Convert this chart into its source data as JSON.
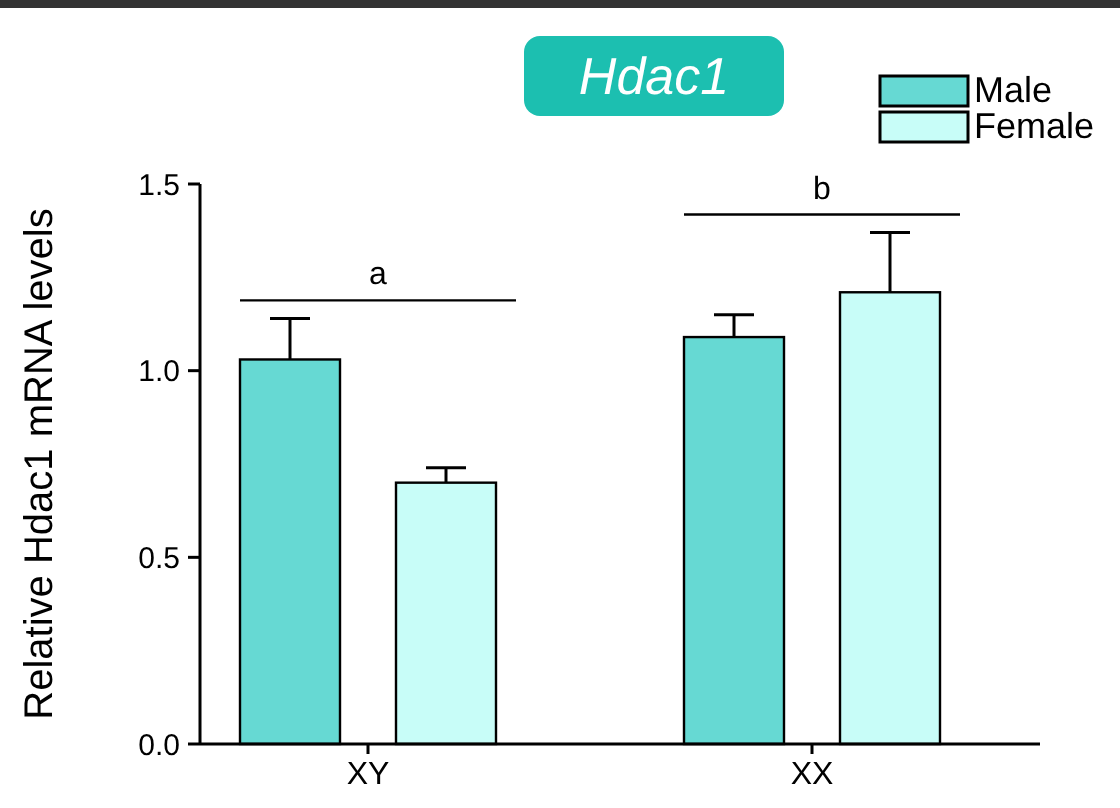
{
  "chart_data": {
    "type": "bar",
    "title": "Hdac1",
    "ylabel": "Relative Hdac1 mRNA levels",
    "categories": [
      "XY",
      "XX"
    ],
    "series": [
      {
        "name": "Male",
        "color": "#66d9d3",
        "values": [
          1.03,
          1.09
        ],
        "errors": [
          0.11,
          0.06
        ]
      },
      {
        "name": "Female",
        "color": "#c8fdf8",
        "values": [
          0.7,
          1.21
        ],
        "errors": [
          0.04,
          0.16
        ]
      }
    ],
    "ylim": [
      0,
      1.5
    ],
    "yticks": [
      {
        "value": 0,
        "label": "0.0"
      },
      {
        "value": 0.5,
        "label": "0.5"
      },
      {
        "value": 1,
        "label": "1.0"
      },
      {
        "value": 1.5,
        "label": "1.5"
      }
    ],
    "annotations": [
      "a",
      "b"
    ],
    "legend": "top right",
    "grid": false
  }
}
